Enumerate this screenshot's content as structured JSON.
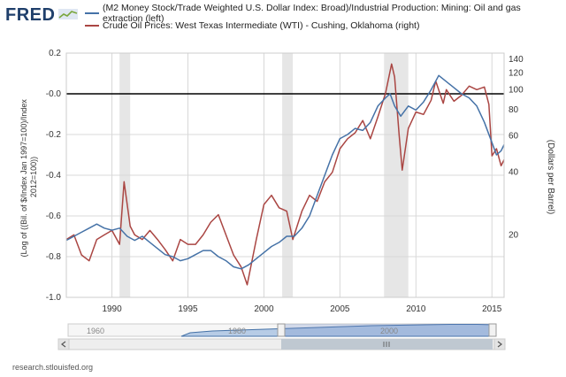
{
  "header": {
    "logo_text": "FRED",
    "logo_icon": "fred-chart-logo-icon"
  },
  "footer": {
    "source": "research.stlouisfed.org"
  },
  "colors": {
    "series_left": "#4572a7",
    "series_right": "#aa4643",
    "recession": "#e6e6e6",
    "zero_line": "#000000",
    "grid": "#d8d8d8",
    "navigator_fill": "#b7cce6",
    "navigator_line": "#4572a7"
  },
  "navigator": {
    "labels": [
      "1960",
      "1980",
      "2000"
    ],
    "scroll_left_icon": "chevron-left-icon",
    "scroll_right_icon": "chevron-right-icon",
    "handle_icon": "grip-icon"
  },
  "chart_data": {
    "type": "line",
    "title": "",
    "x_ticks": [
      "1990",
      "1995",
      "2000",
      "2005",
      "2010",
      "2015"
    ],
    "x_range": [
      1987.0,
      2015.8
    ],
    "grid": true,
    "recessions": [
      [
        1990.5,
        1991.2
      ],
      [
        2001.2,
        2001.9
      ],
      [
        2007.9,
        2009.5
      ]
    ],
    "zero_line": 0,
    "left_axis": {
      "label": "(Log of ((Bil. of $/Index Jan 1997=100)/Index 2012=100))",
      "ticks": [
        "0.2",
        "-0.0",
        "-0.2",
        "-0.4",
        "-0.6",
        "-0.8",
        "-1.0"
      ],
      "tick_values": [
        0.2,
        0.0,
        -0.2,
        -0.4,
        -0.6,
        -0.8,
        -1.0
      ],
      "range": [
        -1.0,
        0.2
      ]
    },
    "right_axis": {
      "label": "(Dollars per Barrel)",
      "scale": "log",
      "ticks": [
        "140",
        "120",
        "100",
        "80",
        "60",
        "40",
        "20"
      ],
      "tick_values": [
        140,
        120,
        100,
        80,
        60,
        40,
        20
      ],
      "range": [
        10,
        150
      ]
    },
    "series": [
      {
        "name": "(M2 Money Stock/Trade Weighted U.S. Dollar Index: Broad)/Industrial Production: Mining: Oil and gas extraction (left)",
        "axis": "left",
        "x": [
          1987.0,
          1987.5,
          1988.0,
          1988.5,
          1989.0,
          1989.5,
          1990.0,
          1990.5,
          1991.0,
          1991.5,
          1992.0,
          1992.5,
          1993.0,
          1993.5,
          1994.0,
          1994.5,
          1995.0,
          1995.5,
          1996.0,
          1996.5,
          1997.0,
          1997.5,
          1998.0,
          1998.5,
          1999.0,
          1999.5,
          2000.0,
          2000.5,
          2001.0,
          2001.5,
          2002.0,
          2002.5,
          2003.0,
          2003.5,
          2004.0,
          2004.5,
          2005.0,
          2005.5,
          2006.0,
          2006.5,
          2007.0,
          2007.5,
          2008.0,
          2008.3,
          2008.6,
          2009.0,
          2009.5,
          2010.0,
          2010.5,
          2011.0,
          2011.5,
          2012.0,
          2012.5,
          2013.0,
          2013.5,
          2014.0,
          2014.5,
          2015.0,
          2015.3,
          2015.6,
          2015.8
        ],
        "values": [
          -0.72,
          -0.7,
          -0.68,
          -0.66,
          -0.64,
          -0.66,
          -0.67,
          -0.66,
          -0.7,
          -0.72,
          -0.7,
          -0.73,
          -0.76,
          -0.79,
          -0.8,
          -0.82,
          -0.81,
          -0.79,
          -0.77,
          -0.77,
          -0.8,
          -0.82,
          -0.85,
          -0.86,
          -0.84,
          -0.81,
          -0.78,
          -0.75,
          -0.73,
          -0.7,
          -0.7,
          -0.66,
          -0.6,
          -0.5,
          -0.4,
          -0.3,
          -0.22,
          -0.2,
          -0.17,
          -0.18,
          -0.14,
          -0.06,
          -0.02,
          0.0,
          -0.06,
          -0.11,
          -0.06,
          -0.08,
          -0.04,
          0.02,
          0.09,
          0.06,
          0.03,
          0.0,
          -0.02,
          -0.06,
          -0.14,
          -0.24,
          -0.3,
          -0.28,
          -0.25
        ]
      },
      {
        "name": "Crude Oil Prices: West Texas Intermediate (WTI) - Cushing, Oklahoma (right)",
        "axis": "right",
        "x": [
          1987.0,
          1987.5,
          1988.0,
          1988.5,
          1989.0,
          1989.5,
          1990.0,
          1990.5,
          1990.8,
          1991.2,
          1991.5,
          1992.0,
          1992.5,
          1993.0,
          1993.5,
          1994.0,
          1994.5,
          1995.0,
          1995.5,
          1996.0,
          1996.5,
          1997.0,
          1997.5,
          1998.0,
          1998.5,
          1998.9,
          1999.5,
          2000.0,
          2000.5,
          2001.0,
          2001.5,
          2001.9,
          2002.5,
          2003.0,
          2003.5,
          2004.0,
          2004.5,
          2005.0,
          2005.5,
          2006.0,
          2006.5,
          2007.0,
          2007.5,
          2008.0,
          2008.4,
          2008.6,
          2008.9,
          2009.1,
          2009.5,
          2010.0,
          2010.5,
          2011.0,
          2011.3,
          2011.8,
          2012.0,
          2012.5,
          2013.0,
          2013.5,
          2014.0,
          2014.5,
          2014.8,
          2015.0,
          2015.3,
          2015.6,
          2015.8
        ],
        "values": [
          19,
          20,
          16,
          15,
          19,
          20,
          21,
          18,
          36,
          22,
          20,
          19,
          21,
          19,
          17,
          15,
          19,
          18,
          18,
          20,
          23,
          25,
          20,
          16,
          14,
          11.5,
          19,
          28,
          31,
          27,
          26,
          19,
          26,
          31,
          29,
          36,
          40,
          52,
          58,
          62,
          71,
          58,
          74,
          96,
          133,
          115,
          60,
          41,
          65,
          78,
          76,
          89,
          110,
          86,
          100,
          88,
          94,
          104,
          100,
          103,
          85,
          48,
          52,
          43,
          46
        ]
      }
    ]
  }
}
